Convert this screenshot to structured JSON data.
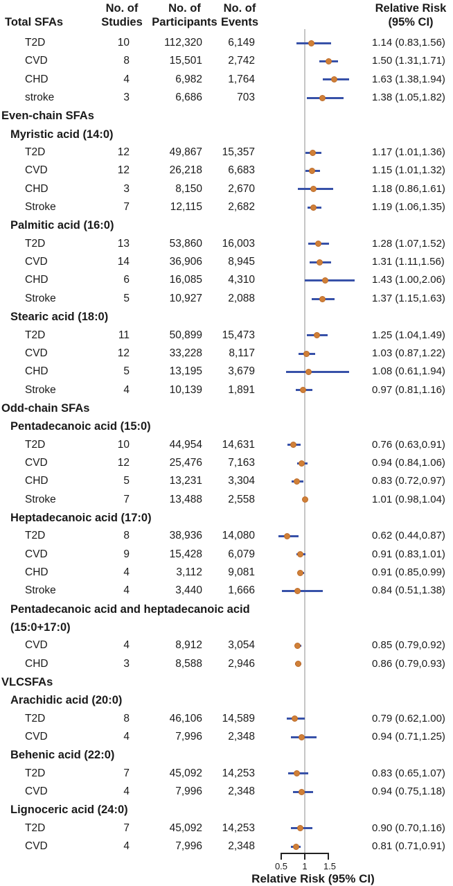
{
  "header": {
    "col_label": "Total SFAs",
    "col_studies_l1": "No. of",
    "col_studies_l2": "Studies",
    "col_participants_l1": "No. of",
    "col_participants_l2": "Participants",
    "col_events_l1": "No. of",
    "col_events_l2": "Events",
    "col_rr_l1": "Relative Risk",
    "col_rr_l2": "(95% CI)"
  },
  "colors": {
    "ci_line": "#3751a8",
    "point_fill": "#d08038",
    "point_border": "#bc6a28",
    "reference_line": "#c6c6c6",
    "axis": "#222222",
    "text": "#1a1a1a",
    "background": "#ffffff"
  },
  "chart_data": {
    "type": "forest",
    "x_axis": {
      "label": "Relative Risk (95% CI)",
      "ticks": [
        0.5,
        1,
        1.5
      ],
      "tick_labels": [
        "0.5",
        "1",
        "1.5"
      ],
      "range": [
        0.44,
        2.06
      ],
      "reference_line": 1
    },
    "rows": [
      {
        "type": "data",
        "label": "T2D",
        "studies": "10",
        "participants": "112,320",
        "events": "6,149",
        "est": 1.14,
        "lo": 0.83,
        "hi": 1.56,
        "rr": "1.14 (0.83,1.56)"
      },
      {
        "type": "data",
        "label": "CVD",
        "studies": "8",
        "participants": "15,501",
        "events": "2,742",
        "est": 1.5,
        "lo": 1.31,
        "hi": 1.71,
        "rr": "1.50 (1.31,1.71)"
      },
      {
        "type": "data",
        "label": "CHD",
        "studies": "4",
        "participants": "6,982",
        "events": "1,764",
        "est": 1.63,
        "lo": 1.38,
        "hi": 1.94,
        "rr": "1.63 (1.38,1.94)"
      },
      {
        "type": "data",
        "label": "stroke",
        "studies": "3",
        "participants": "6,686",
        "events": "703",
        "est": 1.38,
        "lo": 1.05,
        "hi": 1.82,
        "rr": "1.38 (1.05,1.82)"
      },
      {
        "type": "section",
        "label": "Even-chain SFAs"
      },
      {
        "type": "subsection",
        "label": "Myristic acid (14:0)"
      },
      {
        "type": "data",
        "label": "T2D",
        "studies": "12",
        "participants": "49,867",
        "events": "15,357",
        "est": 1.17,
        "lo": 1.01,
        "hi": 1.36,
        "rr": "1.17 (1.01,1.36)"
      },
      {
        "type": "data",
        "label": "CVD",
        "studies": "12",
        "participants": "26,218",
        "events": "6,683",
        "est": 1.15,
        "lo": 1.01,
        "hi": 1.32,
        "rr": "1.15 (1.01,1.32)"
      },
      {
        "type": "data",
        "label": "CHD",
        "studies": "3",
        "participants": "8,150",
        "events": "2,670",
        "est": 1.18,
        "lo": 0.86,
        "hi": 1.61,
        "rr": "1.18 (0.86,1.61)"
      },
      {
        "type": "data",
        "label": "Stroke",
        "studies": "7",
        "participants": "12,115",
        "events": "2,682",
        "est": 1.19,
        "lo": 1.06,
        "hi": 1.35,
        "rr": "1.19 (1.06,1.35)"
      },
      {
        "type": "subsection",
        "label": "Palmitic acid (16:0)"
      },
      {
        "type": "data",
        "label": "T2D",
        "studies": "13",
        "participants": "53,860",
        "events": "16,003",
        "est": 1.28,
        "lo": 1.07,
        "hi": 1.52,
        "rr": "1.28 (1.07,1.52)"
      },
      {
        "type": "data",
        "label": "CVD",
        "studies": "14",
        "participants": "36,906",
        "events": "8,945",
        "est": 1.31,
        "lo": 1.11,
        "hi": 1.56,
        "rr": "1.31 (1.11,1.56)"
      },
      {
        "type": "data",
        "label": "CHD",
        "studies": "6",
        "participants": "16,085",
        "events": "4,310",
        "est": 1.43,
        "lo": 1.0,
        "hi": 2.06,
        "rr": "1.43 (1.00,2.06)"
      },
      {
        "type": "data",
        "label": "Stroke",
        "studies": "5",
        "participants": "10,927",
        "events": "2,088",
        "est": 1.37,
        "lo": 1.15,
        "hi": 1.63,
        "rr": "1.37 (1.15,1.63)"
      },
      {
        "type": "subsection",
        "label": "Stearic acid (18:0)"
      },
      {
        "type": "data",
        "label": "T2D",
        "studies": "11",
        "participants": "50,899",
        "events": "15,473",
        "est": 1.25,
        "lo": 1.04,
        "hi": 1.49,
        "rr": "1.25 (1.04,1.49)"
      },
      {
        "type": "data",
        "label": "CVD",
        "studies": "12",
        "participants": "33,228",
        "events": "8,117",
        "est": 1.03,
        "lo": 0.87,
        "hi": 1.22,
        "rr": "1.03 (0.87,1.22)"
      },
      {
        "type": "data",
        "label": "CHD",
        "studies": "5",
        "participants": "13,195",
        "events": "3,679",
        "est": 1.08,
        "lo": 0.61,
        "hi": 1.94,
        "rr": "1.08 (0.61,1.94)"
      },
      {
        "type": "data",
        "label": "Stroke",
        "studies": "4",
        "participants": "10,139",
        "events": "1,891",
        "est": 0.97,
        "lo": 0.81,
        "hi": 1.16,
        "rr": "0.97 (0.81,1.16)"
      },
      {
        "type": "section",
        "label": "Odd-chain SFAs"
      },
      {
        "type": "subsection",
        "label": "Pentadecanoic acid (15:0)"
      },
      {
        "type": "data",
        "label": "T2D",
        "studies": "10",
        "participants": "44,954",
        "events": "14,631",
        "est": 0.76,
        "lo": 0.63,
        "hi": 0.91,
        "rr": "0.76 (0.63,0.91)"
      },
      {
        "type": "data",
        "label": "CVD",
        "studies": "12",
        "participants": "25,476",
        "events": "7,163",
        "est": 0.94,
        "lo": 0.84,
        "hi": 1.06,
        "rr": "0.94 (0.84,1.06)"
      },
      {
        "type": "data",
        "label": "CHD",
        "studies": "5",
        "participants": "13,231",
        "events": "3,304",
        "est": 0.83,
        "lo": 0.72,
        "hi": 0.97,
        "rr": "0.83 (0.72,0.97)"
      },
      {
        "type": "data",
        "label": "Stroke",
        "studies": "7",
        "participants": "13,488",
        "events": "2,558",
        "est": 1.01,
        "lo": 0.98,
        "hi": 1.04,
        "rr": "1.01 (0.98,1.04)"
      },
      {
        "type": "subsection",
        "label": "Heptadecanoic acid (17:0)"
      },
      {
        "type": "data",
        "label": "T2D",
        "studies": "8",
        "participants": "38,936",
        "events": "14,080",
        "est": 0.62,
        "lo": 0.44,
        "hi": 0.87,
        "rr": "0.62 (0.44,0.87)"
      },
      {
        "type": "data",
        "label": "CVD",
        "studies": "9",
        "participants": "15,428",
        "events": "6,079",
        "est": 0.91,
        "lo": 0.83,
        "hi": 1.01,
        "rr": "0.91 (0.83,1.01)"
      },
      {
        "type": "data",
        "label": "CHD",
        "studies": "4",
        "participants": "3,112",
        "events": "9,081",
        "est": 0.91,
        "lo": 0.85,
        "hi": 0.99,
        "rr": "0.91 (0.85,0.99)"
      },
      {
        "type": "data",
        "label": "Stroke",
        "studies": "4",
        "participants": "3,440",
        "events": "1,666",
        "est": 0.84,
        "lo": 0.51,
        "hi": 1.38,
        "rr": "0.84 (0.51,1.38)"
      },
      {
        "type": "subsection",
        "label": "Pentadecanoic acid and heptadecanoic acid"
      },
      {
        "type": "subsection",
        "label": "(15:0+17:0)"
      },
      {
        "type": "data",
        "label": "CVD",
        "studies": "4",
        "participants": "8,912",
        "events": "3,054",
        "est": 0.85,
        "lo": 0.79,
        "hi": 0.92,
        "rr": "0.85 (0.79,0.92)"
      },
      {
        "type": "data",
        "label": "CHD",
        "studies": "3",
        "participants": "8,588",
        "events": "2,946",
        "est": 0.86,
        "lo": 0.79,
        "hi": 0.93,
        "rr": "0.86 (0.79,0.93)"
      },
      {
        "type": "section",
        "label": "VLCSFAs"
      },
      {
        "type": "subsection",
        "label": "Arachidic acid (20:0)"
      },
      {
        "type": "data",
        "label": "T2D",
        "studies": "8",
        "participants": "46,106",
        "events": "14,589",
        "est": 0.79,
        "lo": 0.62,
        "hi": 1.0,
        "rr": "0.79 (0.62,1.00)"
      },
      {
        "type": "data",
        "label": "CVD",
        "studies": "4",
        "participants": "7,996",
        "events": "2,348",
        "est": 0.94,
        "lo": 0.71,
        "hi": 1.25,
        "rr": "0.94 (0.71,1.25)"
      },
      {
        "type": "subsection",
        "label": "Behenic acid (22:0)"
      },
      {
        "type": "data",
        "label": "T2D",
        "studies": "7",
        "participants": "45,092",
        "events": "14,253",
        "est": 0.83,
        "lo": 0.65,
        "hi": 1.07,
        "rr": "0.83 (0.65,1.07)"
      },
      {
        "type": "data",
        "label": "CVD",
        "studies": "4",
        "participants": "7,996",
        "events": "2,348",
        "est": 0.94,
        "lo": 0.75,
        "hi": 1.18,
        "rr": "0.94 (0.75,1.18)"
      },
      {
        "type": "subsection",
        "label": "Lignoceric acid (24:0)"
      },
      {
        "type": "data",
        "label": "T2D",
        "studies": "7",
        "participants": "45,092",
        "events": "14,253",
        "est": 0.9,
        "lo": 0.7,
        "hi": 1.16,
        "rr": "0.90 (0.70,1.16)"
      },
      {
        "type": "data",
        "label": "CVD",
        "studies": "4",
        "participants": "7,996",
        "events": "2,348",
        "est": 0.81,
        "lo": 0.71,
        "hi": 0.91,
        "rr": "0.81 (0.71,0.91)"
      }
    ]
  }
}
